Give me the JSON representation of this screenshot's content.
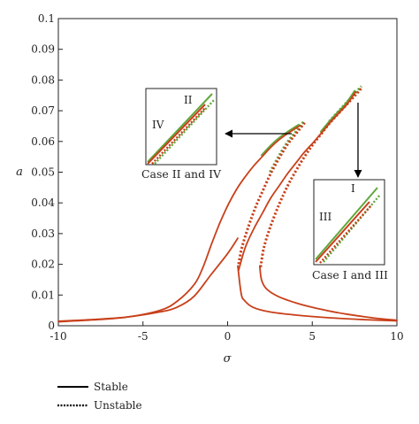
{
  "chart_data": {
    "type": "line",
    "xlabel": "σ",
    "ylabel": "a",
    "xlim": [
      -10,
      10
    ],
    "ylim": [
      0,
      0.1
    ],
    "xticks": [
      -10,
      -5,
      0,
      5,
      10
    ],
    "yticks": [
      0,
      0.01,
      0.02,
      0.03,
      0.04,
      0.05,
      0.06,
      0.07,
      0.08,
      0.09,
      0.1
    ],
    "xtick_labels": [
      "-10",
      "-5",
      "0",
      "5",
      "10"
    ],
    "ytick_labels": [
      "0",
      "0.01",
      "0.02",
      "0.03",
      "0.04",
      "0.05",
      "0.06",
      "0.07",
      "0.08",
      "0.09",
      "0.1"
    ],
    "colors": {
      "stable": "#c8401a",
      "unstable": "#c8401a",
      "green": "#5fa83c"
    },
    "legend": {
      "position": "bottom-left",
      "stable_label": "Stable",
      "unstable_label": "Unstable"
    },
    "curves": [
      {
        "case": "left",
        "stable_lower": [
          [
            -10,
            0.0015
          ],
          [
            -8,
            0.002
          ],
          [
            -6,
            0.0028
          ],
          [
            -4,
            0.0045
          ],
          [
            -3,
            0.006
          ],
          [
            -2,
            0.0095
          ],
          [
            -1,
            0.0165
          ],
          [
            0,
            0.0235
          ],
          [
            0.6,
            0.0285
          ]
        ],
        "stable_upper": [
          [
            -10,
            0.0017
          ],
          [
            -8,
            0.0023
          ],
          [
            -6,
            0.0032
          ],
          [
            -4,
            0.0055
          ],
          [
            -3,
            0.0085
          ],
          [
            -2,
            0.014
          ],
          [
            -1.5,
            0.0195
          ],
          [
            -1,
            0.027
          ],
          [
            -0.5,
            0.034
          ],
          [
            0,
            0.04
          ],
          [
            0.5,
            0.045
          ],
          [
            1,
            0.049
          ],
          [
            1.5,
            0.0525
          ],
          [
            2,
            0.0555
          ],
          [
            2.5,
            0.0585
          ],
          [
            3,
            0.061
          ],
          [
            3.5,
            0.063
          ],
          [
            4.2,
            0.0655
          ]
        ],
        "unstable": [
          [
            0.6,
            0.0205
          ],
          [
            0.8,
            0.026
          ],
          [
            1.2,
            0.033
          ],
          [
            1.6,
            0.039
          ],
          [
            2,
            0.044
          ],
          [
            2.5,
            0.05
          ],
          [
            3,
            0.055
          ],
          [
            3.5,
            0.0595
          ],
          [
            4,
            0.063
          ],
          [
            4.5,
            0.0665
          ]
        ]
      },
      {
        "case": "right",
        "stable_lower": [
          [
            0.6,
            0.0195
          ],
          [
            0.8,
            0.0105
          ],
          [
            1,
            0.0082
          ],
          [
            1.5,
            0.006
          ],
          [
            2.5,
            0.0045
          ],
          [
            4,
            0.0035
          ],
          [
            6,
            0.0026
          ],
          [
            8,
            0.002
          ],
          [
            10,
            0.0016
          ]
        ],
        "stable_lower_2": [
          [
            1.9,
            0.0195
          ],
          [
            2,
            0.015
          ],
          [
            2.3,
            0.012
          ],
          [
            3,
            0.0095
          ],
          [
            4,
            0.0075
          ],
          [
            5,
            0.006
          ],
          [
            6,
            0.0048
          ],
          [
            7,
            0.0038
          ],
          [
            8,
            0.003
          ],
          [
            9,
            0.0023
          ],
          [
            10,
            0.0018
          ]
        ],
        "stable_upper": [
          [
            0.6,
            0.0185
          ],
          [
            1,
            0.026
          ],
          [
            1.5,
            0.032
          ],
          [
            2,
            0.037
          ],
          [
            2.5,
            0.042
          ],
          [
            3,
            0.046
          ],
          [
            3.5,
            0.05
          ],
          [
            4,
            0.0535
          ],
          [
            4.5,
            0.057
          ],
          [
            5,
            0.06
          ],
          [
            5.5,
            0.0632
          ],
          [
            6,
            0.0665
          ],
          [
            6.5,
            0.0695
          ],
          [
            7,
            0.0725
          ],
          [
            7.5,
            0.0765
          ]
        ],
        "unstable": [
          [
            1.9,
            0.0195
          ],
          [
            2.1,
            0.026
          ],
          [
            2.5,
            0.033
          ],
          [
            3,
            0.04
          ],
          [
            3.5,
            0.046
          ],
          [
            4,
            0.051
          ],
          [
            4.5,
            0.0555
          ],
          [
            5,
            0.0595
          ],
          [
            5.5,
            0.063
          ],
          [
            6,
            0.0665
          ],
          [
            6.5,
            0.0695
          ],
          [
            7,
            0.0725
          ],
          [
            7.5,
            0.0755
          ],
          [
            7.9,
            0.078
          ]
        ]
      }
    ],
    "insets": [
      {
        "labels": [
          "II",
          "IV"
        ],
        "caption": "Case II and IV"
      },
      {
        "labels": [
          "I",
          "III"
        ],
        "caption": "Case I and III"
      }
    ]
  }
}
